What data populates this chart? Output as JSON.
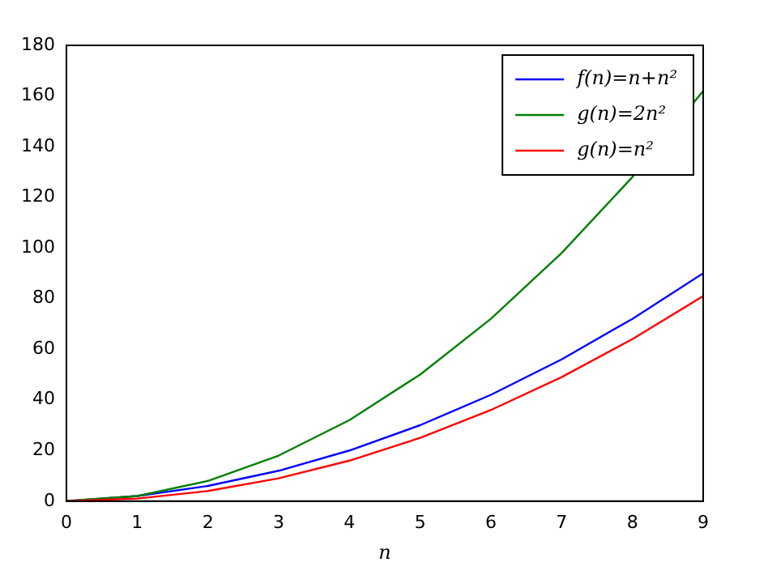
{
  "chart_data": {
    "type": "line",
    "xlabel": "n",
    "x": [
      0,
      1,
      2,
      3,
      4,
      5,
      6,
      7,
      8,
      9
    ],
    "xlim": [
      0,
      9
    ],
    "xticks": [
      0,
      1,
      2,
      3,
      4,
      5,
      6,
      7,
      8,
      9
    ],
    "ylim": [
      0,
      180
    ],
    "yticks": [
      0,
      20,
      40,
      60,
      80,
      100,
      120,
      140,
      160,
      180
    ],
    "grid": false,
    "legend": "top right",
    "marker": "none",
    "line_style": "solid",
    "series": [
      {
        "name": "f(n)=n+n²",
        "color": "#0000ff",
        "values": [
          0,
          2,
          6,
          12,
          20,
          30,
          42,
          56,
          72,
          90
        ]
      },
      {
        "name": "g(n)=2n²",
        "color": "#008000",
        "values": [
          0,
          2,
          8,
          18,
          32,
          50,
          72,
          98,
          128,
          162
        ]
      },
      {
        "name": "g(n)=n²",
        "color": "#ff0000",
        "values": [
          0,
          1,
          4,
          9,
          16,
          25,
          36,
          49,
          64,
          81
        ]
      }
    ]
  }
}
